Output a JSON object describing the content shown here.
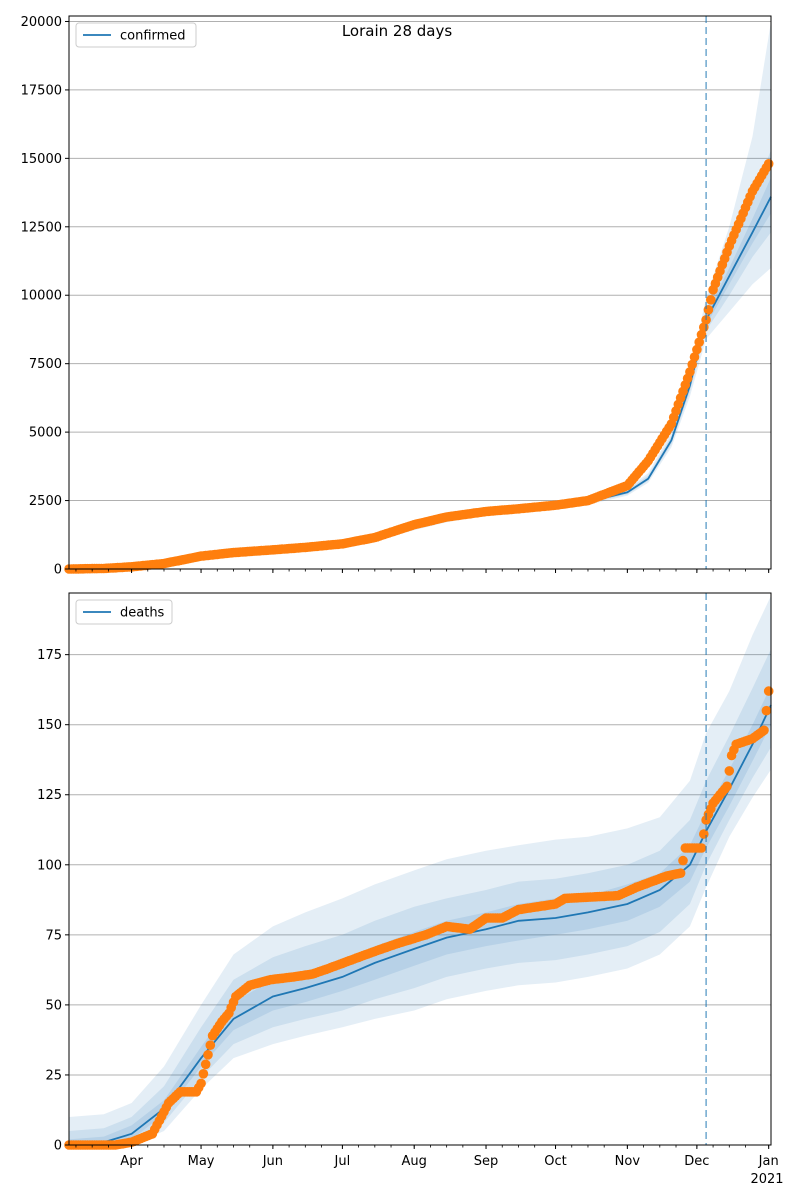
{
  "title": "Lorain 28 days",
  "colors": {
    "model": "#1f77b4",
    "observed": "#ff7f0e",
    "band": "#1f77b4",
    "grid": "#b0b0b0",
    "forecast_line": "#1f77b4"
  },
  "x_axis": {
    "tick_labels": [
      "Apr",
      "May",
      "Jun",
      "Jul",
      "Aug",
      "Sep",
      "Oct",
      "Nov",
      "Dec",
      "Jan"
    ],
    "year_label": "2021"
  },
  "chart_data": [
    {
      "type": "line",
      "legend": "confirmed",
      "legend_position": "upper-left",
      "grid": "horizontal",
      "xlim": [
        "2020-03-05",
        "2021-01-02"
      ],
      "ylim": [
        0,
        20200
      ],
      "y_ticks": [
        0,
        2500,
        5000,
        7500,
        10000,
        12500,
        15000,
        17500,
        20000
      ],
      "y_tick_labels": [
        "0",
        "2500",
        "5000",
        "7500",
        "10000",
        "12500",
        "15000",
        "17500",
        "20000"
      ],
      "forecast_start": "2020-12-05",
      "fit": {
        "x": [
          "2020-03-05",
          "2020-03-20",
          "2020-04-01",
          "2020-04-15",
          "2020-05-01",
          "2020-05-15",
          "2020-06-01",
          "2020-06-15",
          "2020-07-01",
          "2020-07-15",
          "2020-08-01",
          "2020-08-15",
          "2020-09-01",
          "2020-09-15",
          "2020-10-01",
          "2020-10-15",
          "2020-11-01",
          "2020-11-10",
          "2020-11-20",
          "2020-11-28",
          "2020-12-05",
          "2020-12-15",
          "2020-12-25",
          "2021-01-02"
        ],
        "y": [
          0,
          20,
          80,
          200,
          450,
          580,
          690,
          770,
          900,
          1100,
          1500,
          1800,
          2050,
          2200,
          2320,
          2450,
          2800,
          3300,
          4700,
          6700,
          9100,
          10700,
          12300,
          13600
        ]
      },
      "bands": [
        {
          "level": "outer",
          "lower": [
            0,
            0,
            40,
            140,
            380,
            500,
            620,
            700,
            830,
            1020,
            1420,
            1710,
            1960,
            2110,
            2230,
            2350,
            2680,
            3150,
            4450,
            6300,
            8400,
            9400,
            10400,
            11000
          ],
          "upper": [
            50,
            60,
            140,
            290,
            560,
            690,
            790,
            870,
            1000,
            1200,
            1620,
            1920,
            2160,
            2320,
            2440,
            2580,
            2960,
            3500,
            5000,
            7200,
            9900,
            12500,
            15800,
            20000
          ]
        },
        {
          "level": "middle",
          "lower": [
            0,
            5,
            55,
            165,
            410,
            530,
            650,
            730,
            860,
            1060,
            1460,
            1750,
            2000,
            2150,
            2270,
            2400,
            2730,
            3220,
            4560,
            6480,
            8700,
            10000,
            11400,
            12300
          ],
          "upper": [
            30,
            40,
            110,
            250,
            510,
            640,
            740,
            820,
            950,
            1150,
            1560,
            1860,
            2110,
            2270,
            2390,
            2520,
            2890,
            3410,
            4860,
            6950,
            9500,
            11500,
            13600,
            15300
          ]
        },
        {
          "level": "inner",
          "lower": [
            0,
            12,
            68,
            185,
            432,
            558,
            670,
            752,
            882,
            1082,
            1482,
            1777,
            2027,
            2177,
            2297,
            2427,
            2767,
            3262,
            4640,
            6600,
            8900,
            10400,
            11900,
            13000
          ],
          "upper": [
            15,
            30,
            95,
            225,
            478,
            612,
            715,
            792,
            922,
            1122,
            1530,
            1830,
            2080,
            2230,
            2350,
            2480,
            2840,
            3350,
            4770,
            6800,
            9300,
            11000,
            12800,
            14300
          ]
        }
      ],
      "observed": {
        "x": [
          "2020-03-05",
          "2020-03-20",
          "2020-04-01",
          "2020-04-15",
          "2020-05-01",
          "2020-05-15",
          "2020-06-01",
          "2020-06-15",
          "2020-07-01",
          "2020-07-15",
          "2020-08-01",
          "2020-08-15",
          "2020-09-01",
          "2020-09-15",
          "2020-10-01",
          "2020-10-15",
          "2020-11-01",
          "2020-11-10",
          "2020-11-20",
          "2020-11-28",
          "2020-12-05",
          "2020-12-08",
          "2020-12-15",
          "2020-12-25",
          "2021-01-01"
        ],
        "y": [
          0,
          20,
          80,
          200,
          470,
          600,
          700,
          790,
          920,
          1150,
          1620,
          1900,
          2100,
          2200,
          2330,
          2500,
          3050,
          3950,
          5300,
          7200,
          9100,
          10200,
          11800,
          13800,
          14800
        ]
      }
    },
    {
      "type": "line",
      "legend": "deaths",
      "legend_position": "upper-left",
      "grid": "horizontal",
      "xlim": [
        "2020-03-05",
        "2021-01-02"
      ],
      "ylim": [
        0,
        197
      ],
      "y_ticks": [
        0,
        25,
        50,
        75,
        100,
        125,
        150,
        175
      ],
      "y_tick_labels": [
        "0",
        "25",
        "50",
        "75",
        "100",
        "125",
        "150",
        "175"
      ],
      "forecast_start": "2020-12-05",
      "fit": {
        "x": [
          "2020-03-05",
          "2020-03-20",
          "2020-04-01",
          "2020-04-15",
          "2020-05-01",
          "2020-05-15",
          "2020-06-01",
          "2020-06-15",
          "2020-07-01",
          "2020-07-15",
          "2020-08-01",
          "2020-08-15",
          "2020-09-01",
          "2020-09-15",
          "2020-10-01",
          "2020-10-15",
          "2020-11-01",
          "2020-11-15",
          "2020-11-28",
          "2020-12-05",
          "2020-12-15",
          "2020-12-25",
          "2021-01-02"
        ],
        "y": [
          0,
          1,
          4,
          13,
          31,
          45,
          53,
          56,
          60,
          65,
          70,
          74,
          77,
          80,
          81,
          83,
          86,
          91,
          100,
          112,
          127,
          143,
          157
        ]
      },
      "bands": [
        {
          "level": "outer",
          "lower": [
            0,
            0,
            0,
            5,
            20,
            31,
            36,
            39,
            42,
            45,
            48,
            52,
            55,
            57,
            58,
            60,
            63,
            68,
            78,
            92,
            110,
            124,
            134
          ],
          "upper": [
            10,
            11,
            15,
            28,
            50,
            68,
            78,
            83,
            88,
            93,
            98,
            102,
            105,
            107,
            109,
            110,
            113,
            117,
            130,
            147,
            162,
            182,
            196
          ]
        },
        {
          "level": "middle",
          "lower": [
            0,
            0,
            1,
            8,
            24,
            36,
            42,
            45,
            48,
            52,
            56,
            60,
            63,
            65,
            66,
            68,
            71,
            76,
            86,
            100,
            116,
            131,
            142
          ],
          "upper": [
            5,
            6,
            10,
            21,
            42,
            59,
            67,
            71,
            75,
            80,
            85,
            88,
            91,
            94,
            95,
            97,
            100,
            105,
            116,
            130,
            146,
            163,
            177
          ]
        },
        {
          "level": "inner",
          "lower": [
            0,
            0,
            2,
            11,
            28,
            41,
            48,
            51,
            55,
            59,
            64,
            68,
            71,
            73,
            75,
            77,
            80,
            85,
            94,
            106,
            121,
            137,
            150
          ],
          "upper": [
            2,
            3,
            7,
            16,
            35,
            51,
            59,
            62,
            66,
            71,
            76,
            80,
            83,
            86,
            88,
            89,
            93,
            97,
            107,
            119,
            134,
            150,
            164
          ]
        }
      ],
      "observed": {
        "x": [
          "2020-03-05",
          "2020-03-25",
          "2020-04-01",
          "2020-04-10",
          "2020-04-17",
          "2020-04-22",
          "2020-04-29",
          "2020-05-01",
          "2020-05-06",
          "2020-05-10",
          "2020-05-13",
          "2020-05-16",
          "2020-05-22",
          "2020-05-31",
          "2020-06-10",
          "2020-06-18",
          "2020-06-25",
          "2020-07-08",
          "2020-07-18",
          "2020-07-25",
          "2020-08-06",
          "2020-08-15",
          "2020-08-25",
          "2020-09-01",
          "2020-09-08",
          "2020-09-15",
          "2020-10-01",
          "2020-10-05",
          "2020-10-28",
          "2020-11-05",
          "2020-11-18",
          "2020-11-24",
          "2020-11-26",
          "2020-12-03",
          "2020-12-05",
          "2020-12-08",
          "2020-12-14",
          "2020-12-16",
          "2020-12-18",
          "2020-12-25",
          "2020-12-30",
          "2021-01-01"
        ],
        "y": [
          0,
          0,
          1,
          4,
          15,
          19,
          19,
          22,
          39,
          44,
          47,
          53,
          57,
          59,
          60,
          61,
          63,
          67,
          70,
          72,
          75,
          78,
          77,
          81,
          81,
          84,
          86,
          88,
          89,
          92,
          96,
          97,
          106,
          106,
          116,
          122,
          128,
          139,
          143,
          145,
          148,
          162
        ]
      }
    }
  ]
}
